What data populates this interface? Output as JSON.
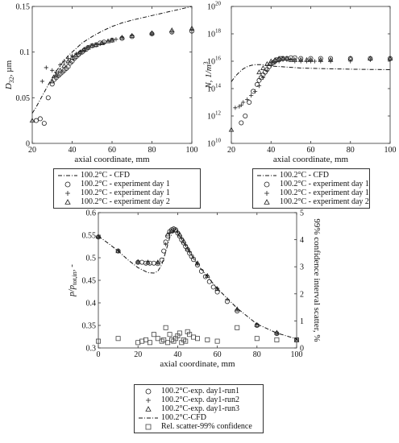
{
  "chart_data": [
    {
      "type": "scatter",
      "ylabel_main": "D",
      "ylabel_sub": "32",
      "ylabel_unit": ", µm",
      "xlabel": "axial coordinate, mm",
      "xlim": [
        20,
        100
      ],
      "ylim": [
        0,
        0.15
      ],
      "xticks": [
        "20",
        "40",
        "60",
        "80",
        "100"
      ],
      "yticks": [
        "0",
        "0.05",
        "0.1",
        "0.15"
      ],
      "legend": [
        "100.2°C - CFD",
        "100.2°C - experiment day 1",
        "100.2°C - experiment day 1",
        "100.2°C - experiment day 2"
      ],
      "series": [
        {
          "name": "100.2°C - CFD",
          "marker": "dashdot",
          "x": [
            20,
            22,
            24,
            26,
            28,
            30,
            32,
            35,
            38,
            40,
            45,
            50,
            55,
            60,
            65,
            70,
            80,
            90,
            100
          ],
          "y": [
            0.033,
            0.04,
            0.048,
            0.056,
            0.064,
            0.072,
            0.079,
            0.088,
            0.096,
            0.1,
            0.11,
            0.117,
            0.123,
            0.128,
            0.132,
            0.135,
            0.14,
            0.145,
            0.15
          ]
        },
        {
          "name": "100.2°C - experiment day 1",
          "marker": "circle",
          "x": [
            22,
            24,
            26,
            28,
            30,
            31,
            32,
            33,
            34,
            35,
            36,
            37,
            38,
            39,
            40,
            41,
            42,
            43,
            44,
            45,
            46,
            47,
            48,
            50,
            52,
            54,
            56,
            60,
            65,
            70,
            80,
            90,
            100
          ],
          "y": [
            0.025,
            0.027,
            0.022,
            0.05,
            0.065,
            0.07,
            0.072,
            0.074,
            0.076,
            0.078,
            0.08,
            0.082,
            0.084,
            0.088,
            0.09,
            0.093,
            0.095,
            0.097,
            0.099,
            0.1,
            0.102,
            0.103,
            0.105,
            0.107,
            0.108,
            0.11,
            0.111,
            0.113,
            0.115,
            0.117,
            0.12,
            0.122,
            0.123
          ]
        },
        {
          "name": "100.2°C - experiment day 1",
          "marker": "plus",
          "x": [
            25,
            27,
            30,
            32,
            34,
            36,
            38,
            40,
            42,
            44,
            46,
            48,
            50,
            52,
            54,
            56,
            58,
            60,
            62,
            65,
            70,
            80,
            90,
            100
          ],
          "y": [
            0.068,
            0.083,
            0.08,
            0.078,
            0.086,
            0.09,
            0.093,
            0.096,
            0.098,
            0.1,
            0.102,
            0.105,
            0.107,
            0.108,
            0.109,
            0.11,
            0.112,
            0.113,
            0.114,
            0.116,
            0.118,
            0.12,
            0.122,
            0.124
          ]
        },
        {
          "name": "100.2°C - experiment day 2",
          "marker": "triangle",
          "x": [
            20,
            30,
            32,
            34,
            36,
            38,
            40,
            42,
            44,
            46,
            48,
            50,
            52,
            55,
            58,
            60,
            65,
            70,
            80,
            90,
            100
          ],
          "y": [
            0.025,
            0.068,
            0.075,
            0.08,
            0.085,
            0.09,
            0.094,
            0.097,
            0.1,
            0.103,
            0.105,
            0.107,
            0.108,
            0.11,
            0.112,
            0.113,
            0.116,
            0.118,
            0.121,
            0.124,
            0.126
          ]
        }
      ]
    },
    {
      "type": "scatter",
      "ylabel": "N, 1/m",
      "ylabel_sup": "3",
      "xlabel": "axial coordinate, mm",
      "xlim": [
        20,
        100
      ],
      "ylim_exponent": [
        10,
        20
      ],
      "y_scale": "log",
      "xticks": [
        "20",
        "40",
        "60",
        "80",
        "100"
      ],
      "ytick_base": "10",
      "ytick_exponents": [
        "10",
        "12",
        "14",
        "16",
        "18",
        "20"
      ],
      "legend": [
        "100.2°C - CFD",
        "100.2°C - experiment day 1",
        "100.2°C - experiment day 1",
        "100.2°C - experiment day 2"
      ],
      "series": [
        {
          "name": "100.2°C - CFD",
          "marker": "dashdot",
          "x": [
            20,
            22,
            24,
            26,
            28,
            30,
            32,
            35,
            38,
            40,
            45,
            50,
            55,
            60,
            70,
            80,
            90,
            100
          ],
          "log10_y": [
            14.5,
            14.9,
            15.2,
            15.45,
            15.6,
            15.7,
            15.75,
            15.75,
            15.7,
            15.65,
            15.6,
            15.55,
            15.5,
            15.48,
            15.45,
            15.42,
            15.4,
            15.38
          ]
        },
        {
          "name": "100.2°C - experiment day 1",
          "marker": "circle",
          "x": [
            25,
            27,
            29,
            31,
            33,
            34,
            35,
            36,
            37,
            38,
            39,
            40,
            41,
            42,
            43,
            44,
            45,
            46,
            48,
            50,
            52,
            55,
            60,
            65,
            70,
            80,
            90,
            100
          ],
          "log10_y": [
            11.5,
            12.0,
            13.0,
            13.8,
            14.3,
            14.6,
            14.8,
            15.0,
            15.2,
            15.4,
            15.6,
            15.8,
            15.9,
            16.0,
            16.1,
            16.1,
            16.2,
            16.2,
            16.2,
            16.25,
            16.25,
            16.2,
            16.2,
            16.2,
            16.2,
            16.2,
            16.2,
            16.2
          ]
        },
        {
          "name": "100.2°C - experiment day 1",
          "marker": "plus",
          "x": [
            22,
            24,
            25,
            26,
            28,
            30,
            32,
            34,
            36,
            38,
            40,
            42,
            44,
            46,
            48,
            50,
            52,
            55,
            58,
            60,
            62,
            65,
            70,
            80,
            90,
            100
          ],
          "log10_y": [
            12.6,
            12.7,
            12.8,
            13.0,
            13.2,
            13.5,
            13.8,
            14.2,
            14.8,
            15.3,
            15.7,
            15.9,
            16.0,
            16.1,
            16.1,
            16.1,
            16.0,
            16.0,
            16.0,
            16.0,
            16.0,
            16.0,
            16.0,
            16.0,
            16.1,
            16.1
          ]
        },
        {
          "name": "100.2°C - experiment day 2",
          "marker": "triangle",
          "x": [
            20,
            34,
            36,
            38,
            40,
            42,
            44,
            46,
            48,
            50,
            52,
            55,
            58,
            60,
            65,
            70,
            80,
            90,
            100
          ],
          "log10_y": [
            11.0,
            15.2,
            15.5,
            15.8,
            16.0,
            16.1,
            16.2,
            16.2,
            16.2,
            16.1,
            16.1,
            16.1,
            16.1,
            16.1,
            16.1,
            16.1,
            16.2,
            16.2,
            16.2
          ]
        }
      ]
    },
    {
      "type": "scatter",
      "ylabel_left": "p/p",
      "ylabel_left_sub": "tot,in",
      "ylabel_left_tail": ", -",
      "ylabel_right": "99% confidence interval scatter, %",
      "xlabel": "axial coordinate, mm",
      "xlim": [
        0,
        100
      ],
      "ylim_left": [
        0.3,
        0.6
      ],
      "ylim_right": [
        0,
        5
      ],
      "xticks": [
        "0",
        "20",
        "40",
        "60",
        "80",
        "100"
      ],
      "yticks_left": [
        "0.3",
        "0.35",
        "0.4",
        "0.45",
        "0.5",
        "0.55",
        "0.6"
      ],
      "yticks_right": [
        "0",
        "1",
        "2",
        "3",
        "4",
        "5"
      ],
      "legend": [
        "100.2°C-exp. day1-run1",
        "100.2°C-exp. day1-run2",
        "100.2°C-exp. day1-run3",
        "100.2°C-CFD",
        "Rel. scatter-99% confidence"
      ],
      "series": [
        {
          "name": "100.2°C-exp. day1-run1",
          "marker": "circle",
          "x": [
            0,
            10,
            20,
            22,
            24,
            26,
            28,
            30,
            32,
            33,
            34,
            35,
            36,
            37,
            38,
            39,
            40,
            41,
            42,
            43,
            44,
            45,
            46,
            47,
            48,
            50,
            52,
            54,
            56,
            58,
            60,
            65,
            70,
            80,
            90,
            100
          ],
          "y": [
            0.546,
            0.515,
            0.49,
            0.49,
            0.488,
            0.488,
            0.488,
            0.487,
            0.495,
            0.515,
            0.535,
            0.548,
            0.558,
            0.562,
            0.564,
            0.562,
            0.555,
            0.548,
            0.54,
            0.533,
            0.525,
            0.518,
            0.51,
            0.503,
            0.496,
            0.484,
            0.47,
            0.458,
            0.447,
            0.435,
            0.424,
            0.403,
            0.382,
            0.35,
            0.332,
            0.318
          ]
        },
        {
          "name": "100.2°C-exp. day1-run2",
          "marker": "plus",
          "x": [
            0,
            10,
            20,
            25,
            30,
            34,
            36,
            38,
            40,
            42,
            44,
            46,
            48,
            50,
            55,
            60,
            65,
            70,
            80,
            90,
            100
          ],
          "y": [
            0.545,
            0.516,
            0.49,
            0.49,
            0.489,
            0.53,
            0.555,
            0.562,
            0.557,
            0.543,
            0.528,
            0.513,
            0.5,
            0.487,
            0.46,
            0.432,
            0.408,
            0.385,
            0.352,
            0.333,
            0.318
          ]
        },
        {
          "name": "100.2°C-exp. day1-run3",
          "marker": "triangle",
          "x": [
            0,
            10,
            20,
            25,
            30,
            35,
            37,
            39,
            41,
            43,
            45,
            50,
            55,
            60,
            70,
            80,
            90,
            100
          ],
          "y": [
            0.547,
            0.515,
            0.491,
            0.49,
            0.49,
            0.552,
            0.56,
            0.561,
            0.552,
            0.537,
            0.52,
            0.488,
            0.46,
            0.431,
            0.386,
            0.351,
            0.334,
            0.317
          ]
        },
        {
          "name": "100.2°C-CFD",
          "marker": "dashdot",
          "x": [
            0,
            5,
            10,
            15,
            20,
            25,
            28,
            30,
            32,
            34,
            36,
            38,
            40,
            45,
            50,
            55,
            60,
            65,
            70,
            80,
            90,
            100
          ],
          "y": [
            0.548,
            0.532,
            0.515,
            0.495,
            0.478,
            0.467,
            0.466,
            0.47,
            0.485,
            0.513,
            0.545,
            0.558,
            0.555,
            0.52,
            0.485,
            0.458,
            0.432,
            0.41,
            0.388,
            0.353,
            0.333,
            0.32
          ]
        },
        {
          "name": "Rel. scatter-99% confidence",
          "marker": "square",
          "axis": "right",
          "x": [
            0,
            10,
            20,
            22,
            24,
            26,
            28,
            30,
            32,
            33,
            34,
            35,
            36,
            37,
            38,
            39,
            40,
            41,
            42,
            43,
            44,
            45,
            46,
            48,
            50,
            55,
            60,
            70,
            80,
            90,
            100
          ],
          "y": [
            0.25,
            0.35,
            0.2,
            0.25,
            0.3,
            0.2,
            0.5,
            0.35,
            0.25,
            0.3,
            0.75,
            0.2,
            0.5,
            0.3,
            0.25,
            0.35,
            0.45,
            0.55,
            0.2,
            0.3,
            0.25,
            0.6,
            0.5,
            0.4,
            0.35,
            0.3,
            0.25,
            0.75,
            0.35,
            0.3,
            0.3
          ]
        }
      ]
    }
  ]
}
